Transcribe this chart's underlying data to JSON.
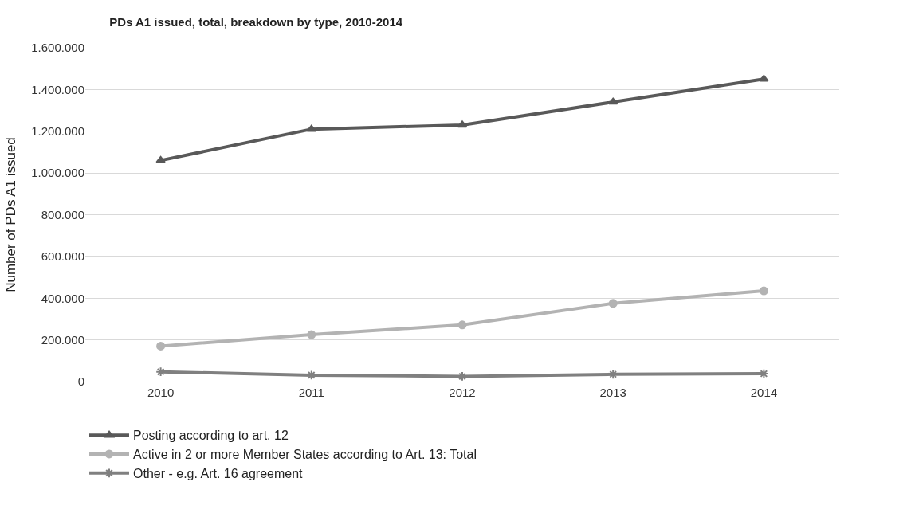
{
  "chart_data": {
    "type": "line",
    "title": "PDs A1 issued, total, breakdown by type, 2010-2014",
    "ylabel": "Number of PDs A1 issued",
    "categories": [
      "2010",
      "2011",
      "2012",
      "2013",
      "2014"
    ],
    "series": [
      {
        "name": "Posting according to art. 12",
        "color": "#595959",
        "marker": "triangle",
        "values": [
          1060000,
          1210000,
          1230000,
          1340000,
          1450000
        ]
      },
      {
        "name": "Active in 2 or more Member States according to Art. 13: Total",
        "color": "#b3b3b3",
        "marker": "circle",
        "values": [
          170000,
          225000,
          272000,
          375000,
          435000
        ]
      },
      {
        "name": "Other - e.g. Art. 16 agreement",
        "color": "#808080",
        "marker": "cross",
        "values": [
          47000,
          31000,
          25000,
          35000,
          38000
        ]
      }
    ],
    "ylim": [
      0,
      1600000
    ],
    "yticks": [
      {
        "value": 0,
        "label": "0"
      },
      {
        "value": 200000,
        "label": "200.000"
      },
      {
        "value": 400000,
        "label": "400.000"
      },
      {
        "value": 600000,
        "label": "600.000"
      },
      {
        "value": 800000,
        "label": "800.000"
      },
      {
        "value": 1000000,
        "label": "1.000.000"
      },
      {
        "value": 1200000,
        "label": "1.200.000"
      },
      {
        "value": 1400000,
        "label": "1.400.000"
      },
      {
        "value": 1600000,
        "label": "1.600.000"
      }
    ],
    "grid": "y",
    "legend": "bottom",
    "line_style": "solid"
  }
}
